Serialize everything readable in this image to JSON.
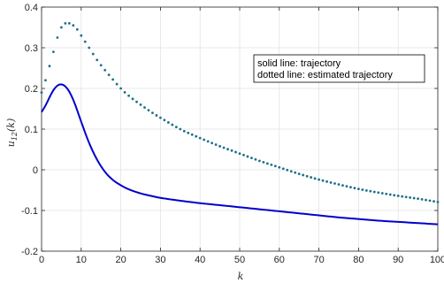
{
  "chart_data": {
    "type": "line",
    "title": "",
    "xlabel": "k",
    "ylabel": "u_12(k)",
    "xlim": [
      0,
      100
    ],
    "ylim": [
      -0.2,
      0.4
    ],
    "xticks": [
      0,
      10,
      20,
      30,
      40,
      50,
      60,
      70,
      80,
      90,
      100
    ],
    "yticks": [
      -0.2,
      -0.1,
      0,
      0.1,
      0.2,
      0.3,
      0.4
    ],
    "xtick_labels": [
      "0",
      "10",
      "20",
      "30",
      "40",
      "50",
      "60",
      "70",
      "80",
      "90",
      "100"
    ],
    "ytick_labels": [
      "-0.2",
      "-0.1",
      "0",
      "0.1",
      "0.2",
      "0.3",
      "0.4"
    ],
    "grid": true,
    "legend_lines": [
      "solid line: trajectory",
      "dotted line: estimated trajectory"
    ],
    "legend_placement": "top-right",
    "series": [
      {
        "style": "solid",
        "color": "#0000cc",
        "x": [
          0,
          1,
          2,
          3,
          4,
          5,
          6,
          7,
          8,
          9,
          10,
          12,
          14,
          16,
          18,
          20,
          22,
          25,
          28,
          30,
          35,
          40,
          45,
          50,
          55,
          60,
          65,
          70,
          75,
          80,
          85,
          90,
          95,
          100
        ],
        "y": [
          0.142,
          0.158,
          0.178,
          0.196,
          0.207,
          0.21,
          0.205,
          0.192,
          0.172,
          0.146,
          0.118,
          0.066,
          0.025,
          -0.005,
          -0.025,
          -0.038,
          -0.048,
          -0.058,
          -0.065,
          -0.069,
          -0.076,
          -0.082,
          -0.087,
          -0.092,
          -0.097,
          -0.102,
          -0.107,
          -0.112,
          -0.117,
          -0.121,
          -0.125,
          -0.128,
          -0.131,
          -0.134
        ]
      },
      {
        "style": "dotted",
        "color": "#1f6f8b",
        "x": [
          0,
          1,
          2,
          3,
          4,
          5,
          6,
          7,
          8,
          9,
          10,
          12,
          14,
          16,
          18,
          20,
          22,
          25,
          28,
          30,
          35,
          40,
          45,
          50,
          55,
          60,
          65,
          70,
          75,
          80,
          85,
          90,
          95,
          100
        ],
        "y": [
          0.19,
          0.22,
          0.255,
          0.29,
          0.325,
          0.35,
          0.36,
          0.36,
          0.355,
          0.345,
          0.33,
          0.3,
          0.27,
          0.245,
          0.222,
          0.2,
          0.182,
          0.16,
          0.14,
          0.128,
          0.1,
          0.078,
          0.058,
          0.04,
          0.022,
          0.006,
          -0.01,
          -0.024,
          -0.036,
          -0.047,
          -0.056,
          -0.064,
          -0.071,
          -0.079
        ]
      }
    ]
  }
}
